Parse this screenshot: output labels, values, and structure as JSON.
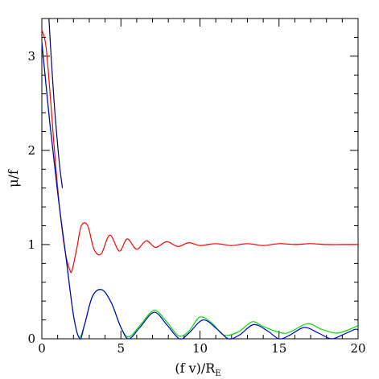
{
  "chart_data": {
    "type": "line",
    "title": "",
    "xlabel": "(f v)/R",
    "xlabel_subscript": "E",
    "ylabel": "μ/f",
    "xlim": [
      0,
      20
    ],
    "ylim": [
      0,
      3.4
    ],
    "x_ticks": [
      0,
      5,
      10,
      15,
      20
    ],
    "y_ticks": [
      0,
      1,
      2,
      3
    ],
    "x_tick_labels": [
      "0",
      "5",
      "10",
      "15",
      "20"
    ],
    "y_tick_labels": [
      "0",
      "1",
      "2",
      "3"
    ],
    "grid": false,
    "legend": "none",
    "series": [
      {
        "color": "#ff0000",
        "x": [
          0,
          0.25,
          0.5,
          0.75,
          1.0,
          1.25,
          1.5,
          1.75,
          1.9,
          2.2,
          2.5,
          2.9,
          3.3,
          3.75,
          4.3,
          4.9,
          5.4,
          6.0,
          6.6,
          7.2,
          7.9,
          8.6,
          9.3,
          10,
          11,
          12,
          13,
          14,
          15,
          16,
          17,
          18,
          19,
          20
        ],
        "y": [
          3.28,
          3.12,
          2.65,
          2.1,
          1.6,
          1.2,
          0.9,
          0.74,
          0.72,
          0.95,
          1.2,
          1.2,
          0.95,
          0.9,
          1.1,
          0.93,
          1.06,
          0.95,
          1.04,
          0.97,
          1.03,
          0.98,
          1.02,
          0.99,
          1.01,
          0.99,
          1.01,
          0.99,
          1.01,
          1.0,
          1.01,
          1.0,
          1.0,
          1.0
        ]
      },
      {
        "color": "#00dd00",
        "x": [
          0,
          0.5,
          1.0,
          1.5,
          2.0,
          2.35,
          2.7,
          3.2,
          3.8,
          4.4,
          5.0,
          5.5,
          6.2,
          7.1,
          7.9,
          8.65,
          9.3,
          10.0,
          10.8,
          11.5,
          12.4,
          13.3,
          14.0,
          15.2,
          15.8,
          16.8,
          17.7,
          18.6,
          19.3,
          20.0
        ],
        "y": [
          3.15,
          2.3,
          1.55,
          0.9,
          0.25,
          0.02,
          0.15,
          0.45,
          0.52,
          0.38,
          0.12,
          0.02,
          0.14,
          0.3,
          0.18,
          0.03,
          0.08,
          0.23,
          0.16,
          0.04,
          0.07,
          0.18,
          0.13,
          0.06,
          0.08,
          0.16,
          0.1,
          0.06,
          0.09,
          0.14
        ]
      },
      {
        "color": "#0000cc",
        "x": [
          0,
          0.5,
          1.0,
          1.5,
          2.0,
          2.4,
          2.7,
          3.2,
          3.8,
          4.4,
          5.0,
          5.5,
          6.2,
          7.1,
          7.9,
          8.7,
          9.3,
          10.2,
          11.1,
          11.8,
          12.5,
          13.4,
          14.3,
          15.0,
          15.7,
          16.6,
          17.5,
          18.3,
          19.0,
          19.8,
          20.0
        ],
        "y": [
          3.15,
          2.3,
          1.55,
          0.9,
          0.25,
          0.0,
          0.15,
          0.45,
          0.52,
          0.38,
          0.12,
          0.0,
          0.12,
          0.28,
          0.15,
          0.0,
          0.06,
          0.2,
          0.1,
          0.0,
          0.04,
          0.15,
          0.08,
          0.0,
          0.04,
          0.12,
          0.06,
          0.0,
          0.04,
          0.1,
          0.09
        ]
      },
      {
        "color": "#000066",
        "x": [
          0.45,
          0.55,
          0.7,
          0.85,
          1.0,
          1.15,
          1.3
        ],
        "y": [
          3.4,
          3.1,
          2.7,
          2.35,
          2.05,
          1.8,
          1.6
        ]
      }
    ]
  }
}
